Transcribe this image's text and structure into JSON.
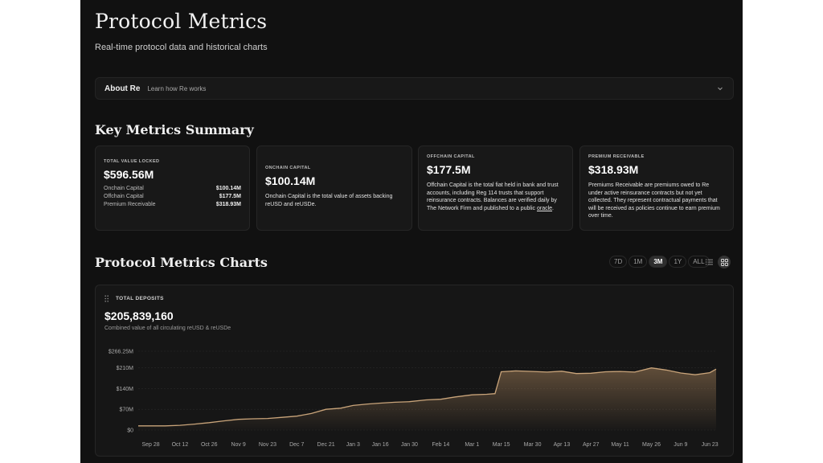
{
  "header": {
    "title": "Protocol Metrics",
    "subtitle": "Real-time protocol data and historical charts"
  },
  "about": {
    "title": "About Re",
    "subtitle": "Learn how Re works",
    "icon": "chevron-down-icon"
  },
  "summary": {
    "title": "Key Metrics Summary",
    "tvl": {
      "label": "TOTAL VALUE LOCKED",
      "value": "$596.56M",
      "rows": [
        {
          "name": "Onchain Capital",
          "value": "$100.14M"
        },
        {
          "name": "Offchain Capital",
          "value": "$177.5M"
        },
        {
          "name": "Premium Receivable",
          "value": "$318.93M"
        }
      ]
    },
    "onchain": {
      "label": "ONCHAIN CAPITAL",
      "value": "$100.14M",
      "desc": "Onchain Capital is the total value of assets backing reUSD and reUSDe."
    },
    "offchain": {
      "label": "OFFCHAIN CAPITAL",
      "value": "$177.5M",
      "desc": "Offchain Capital is the total fiat held in bank and trust accounts, including Reg 114 trusts that support reinsurance contracts. Balances are verified daily by The Network Firm and published to a public",
      "link": "oracle",
      "desc_end": "."
    },
    "premium": {
      "label": "PREMIUM RECEIVABLE",
      "value": "$318.93M",
      "desc": "Premiums Receivable are premiums owed to Re under active reinsurance contracts but not yet collected. They represent contractual payments that will be received as policies continue to earn premium over time."
    }
  },
  "charts": {
    "title": "Protocol Metrics Charts",
    "ranges": [
      "7D",
      "1M",
      "3M",
      "1Y",
      "ALL"
    ],
    "active_range": "3M",
    "view_icons": [
      "list-icon",
      "grid-icon"
    ]
  },
  "deposits": {
    "label": "TOTAL DEPOSITS",
    "value": "$205,839,160",
    "subtitle": "Combined value of all circulating reUSD & reUSDe"
  },
  "chart_data": {
    "type": "area",
    "title": "TOTAL DEPOSITS",
    "xlabel": "",
    "ylabel": "",
    "y_ticks": [
      "$0",
      "$70M",
      "$140M",
      "$210M",
      "$266.25M"
    ],
    "y_tick_values": [
      0,
      70,
      140,
      210,
      266.25
    ],
    "ylim": [
      0,
      266.25
    ],
    "x_ticks": [
      "Sep 28",
      "Oct 12",
      "Oct 26",
      "Nov 9",
      "Nov 23",
      "Dec 7",
      "Dec 21",
      "Jan 3",
      "Jan 16",
      "Jan 30",
      "Feb 14",
      "Mar 1",
      "Mar 15",
      "Mar 30",
      "Apr 13",
      "Apr 27",
      "May 11",
      "May 26",
      "Jun 9",
      "Jun 23"
    ],
    "grid": true,
    "color": "#c9a47a",
    "series": [
      {
        "x": [
          "Sep 22",
          "Sep 28",
          "Oct 5",
          "Oct 12",
          "Oct 19",
          "Oct 26",
          "Nov 2",
          "Nov 9",
          "Nov 16",
          "Nov 23",
          "Nov 30",
          "Dec 7",
          "Dec 14",
          "Dec 21",
          "Dec 28",
          "Jan 3",
          "Jan 10",
          "Jan 16",
          "Jan 23",
          "Jan 30",
          "Feb 7",
          "Feb 14",
          "Feb 21",
          "Mar 1",
          "Mar 8",
          "Mar 12",
          "Mar 15",
          "Mar 22",
          "Mar 30",
          "Apr 6",
          "Apr 13",
          "Apr 20",
          "Apr 27",
          "May 4",
          "May 11",
          "May 18",
          "May 26",
          "Jun 2",
          "Jun 9",
          "Jun 16",
          "Jun 23",
          "Jun 26"
        ],
        "values": [
          14,
          14,
          14,
          16,
          20,
          25,
          31,
          36,
          38,
          39,
          43,
          47,
          56,
          70,
          74,
          83,
          88,
          91,
          94,
          96,
          102,
          104,
          112,
          119,
          121,
          123,
          197,
          200,
          198,
          196,
          199,
          191,
          192,
          197,
          198,
          196,
          210,
          203,
          193,
          187,
          194,
          206
        ]
      }
    ]
  }
}
